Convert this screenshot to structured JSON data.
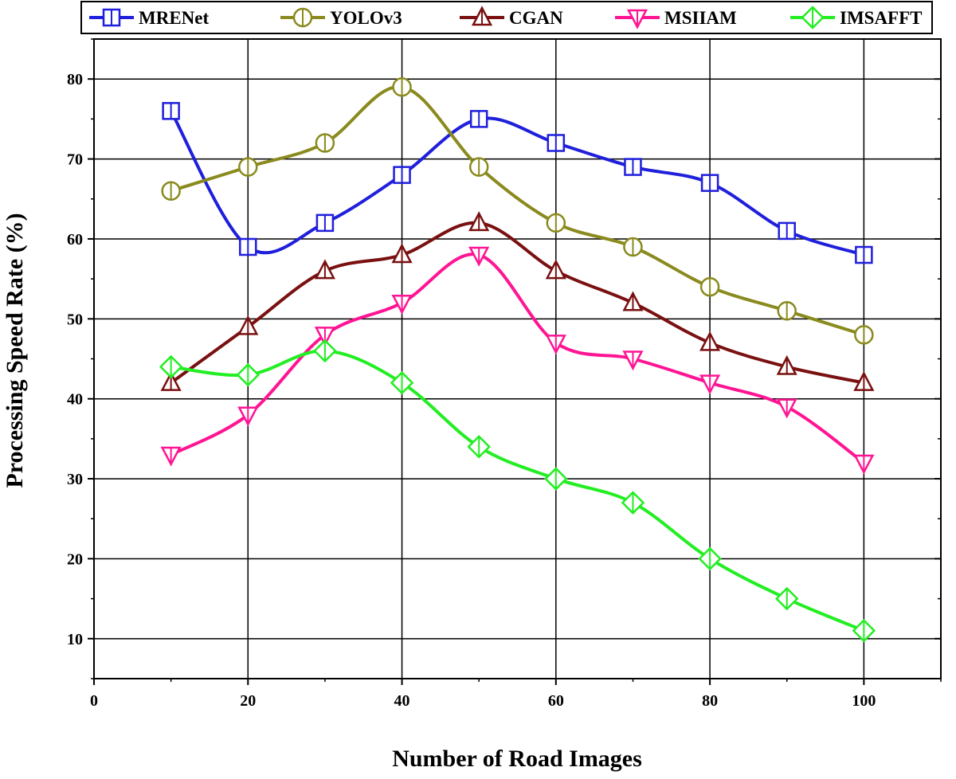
{
  "chart_data": {
    "type": "line",
    "title": "",
    "xlabel": "Number of Road Images",
    "ylabel": "Processing Speed Rate (%)",
    "xlim": [
      0,
      110
    ],
    "ylim": [
      5,
      85
    ],
    "xticks": [
      0,
      20,
      40,
      60,
      80,
      100
    ],
    "yticks": [
      10,
      20,
      30,
      40,
      50,
      60,
      70,
      80
    ],
    "grid": true,
    "legend_position": "top",
    "x": [
      10,
      20,
      30,
      40,
      50,
      60,
      70,
      80,
      90,
      100
    ],
    "series": [
      {
        "name": "MRENet",
        "color": "#1f1fdc",
        "marker": "square",
        "values": [
          76,
          59,
          62,
          68,
          75,
          72,
          69,
          67,
          61,
          58
        ]
      },
      {
        "name": "YOLOv3",
        "color": "#8a8a1e",
        "marker": "circle",
        "values": [
          66,
          69,
          72,
          79,
          69,
          62,
          59,
          54,
          51,
          48
        ]
      },
      {
        "name": "CGAN",
        "color": "#7a1010",
        "marker": "triangle-up",
        "values": [
          42,
          49,
          56,
          58,
          62,
          56,
          52,
          47,
          44,
          42
        ]
      },
      {
        "name": "MSIIAM",
        "color": "#ff1493",
        "marker": "triangle-down",
        "values": [
          33,
          38,
          48,
          52,
          58,
          47,
          45,
          42,
          39,
          32
        ]
      },
      {
        "name": "IMSAFFT",
        "color": "#22ee22",
        "marker": "diamond",
        "values": [
          44,
          43,
          46,
          42,
          34,
          30,
          27,
          20,
          15,
          11
        ]
      }
    ]
  }
}
